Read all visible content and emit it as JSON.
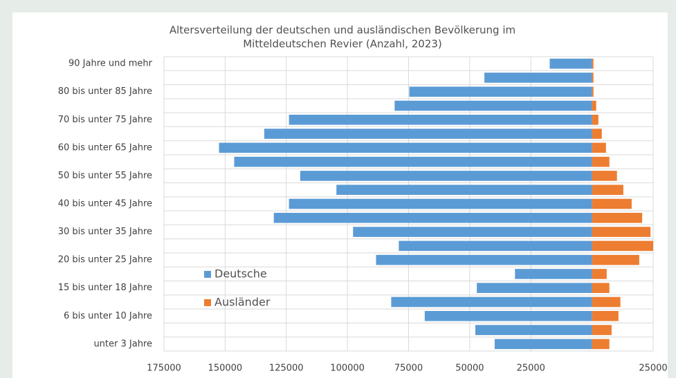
{
  "chart_data": {
    "type": "hbar_pyramid",
    "title": "Altersverteilung  der deutschen und ausländischen Bevölkerung im",
    "subtitle": "Mitteldeutschen Revier (Anzahl, 2023)",
    "categories": [
      "90 Jahre und mehr",
      null,
      "80 bis unter 85 Jahre",
      null,
      "70 bis unter 75 Jahre",
      null,
      "60 bis unter 65 Jahre",
      null,
      "50 bis unter 55 Jahre",
      null,
      "40 bis unter 45 Jahre",
      null,
      "30 bis unter 35 Jahre",
      null,
      "20 bis unter 25 Jahre",
      null,
      "15 bis unter 18 Jahre",
      null,
      "6 bis unter 10 Jahre",
      null,
      "unter 3 Jahre"
    ],
    "series": [
      {
        "name": "Deutsche",
        "color": "#5b9bd5",
        "values": [
          -17300,
          -44000,
          -74700,
          -80700,
          -123900,
          -134000,
          -152500,
          -146300,
          -119300,
          -104500,
          -123900,
          -130100,
          -97700,
          -79000,
          -88300,
          -31500,
          -47100,
          -82100,
          -68400,
          -47700,
          -39800
        ]
      },
      {
        "name": "Ausländer",
        "color": "#ed7d31",
        "values": [
          600,
          600,
          600,
          1700,
          2600,
          4000,
          5700,
          7100,
          10200,
          12800,
          16200,
          20500,
          23900,
          25000,
          19300,
          6000,
          7100,
          11600,
          10800,
          8000,
          7100
        ]
      }
    ],
    "xlim": [
      -175000,
      25000
    ],
    "xticks": [
      {
        "value": -175000,
        "label": "175000"
      },
      {
        "value": -150000,
        "label": "150000"
      },
      {
        "value": -125000,
        "label": "125000"
      },
      {
        "value": -100000,
        "label": "100000"
      },
      {
        "value": -75000,
        "label": "75000"
      },
      {
        "value": -50000,
        "label": "50000"
      },
      {
        "value": -25000,
        "label": "25000"
      },
      25000
    ],
    "grid": true,
    "legend": "lower left"
  }
}
